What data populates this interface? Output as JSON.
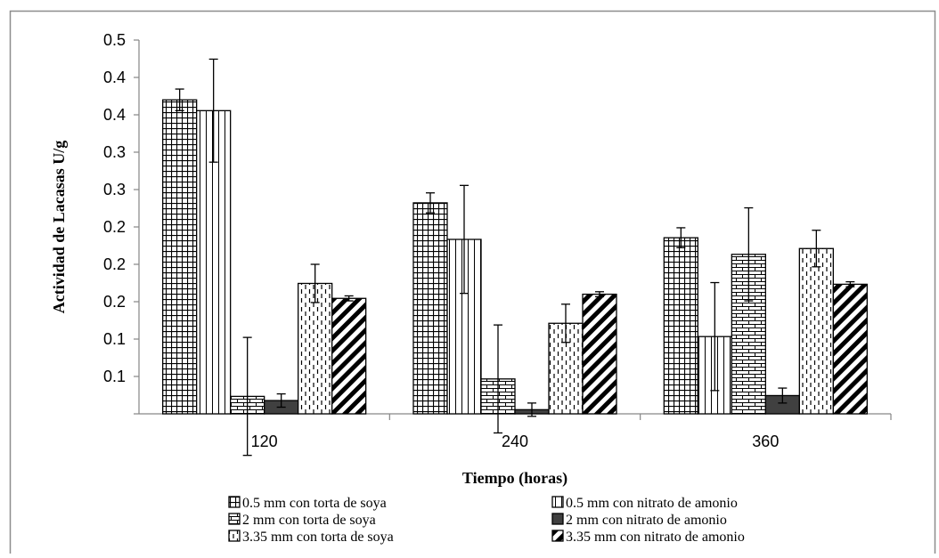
{
  "chart_data": {
    "type": "bar",
    "title": "",
    "xlabel": "Tiempo (horas)",
    "ylabel": "Actividad de Lacasas U/g",
    "categories": [
      "120",
      "240",
      "360"
    ],
    "y_tick_labels": [
      "0.1",
      "0.1",
      "0.1",
      "0.2",
      "0.2",
      "0.2",
      "0.3",
      "0.3",
      "0.4",
      "0.4",
      "0.5"
    ],
    "ylim": [
      0.05,
      0.5
    ],
    "grid": false,
    "error_bars": true,
    "legend_position": "bottom",
    "series": [
      {
        "name": "0.5 mm con torta de soya",
        "values": [
          0.428,
          0.304,
          0.262
        ],
        "errors": [
          0.013,
          0.012,
          0.012
        ],
        "pattern": "grid",
        "color": "#000000"
      },
      {
        "name": "0.5 mm con nitrato de amonio",
        "values": [
          0.415,
          0.26,
          0.143
        ],
        "errors": [
          0.062,
          0.065,
          0.065
        ],
        "pattern": "vertical-lines",
        "color": "#000000"
      },
      {
        "name": "2 mm con torta de soya",
        "values": [
          0.071,
          0.092,
          0.242
        ],
        "errors": [
          0.071,
          0.065,
          0.056
        ],
        "pattern": "brick",
        "color": "#000000"
      },
      {
        "name": "2 mm con nitrato de amonio",
        "values": [
          0.066,
          0.055,
          0.072
        ],
        "errors": [
          0.008,
          0.008,
          0.009
        ],
        "pattern": "solid",
        "color": "#404040"
      },
      {
        "name": "3.35 mm con torta de soya",
        "values": [
          0.207,
          0.159,
          0.249
        ],
        "errors": [
          0.023,
          0.023,
          0.022
        ],
        "pattern": "dashed-vertical",
        "color": "#000000"
      },
      {
        "name": "3.35 mm con nitrato de amonio",
        "values": [
          0.189,
          0.194,
          0.206
        ],
        "errors": [
          0.003,
          0.003,
          0.003
        ],
        "pattern": "diagonal",
        "color": "#000000"
      }
    ]
  }
}
